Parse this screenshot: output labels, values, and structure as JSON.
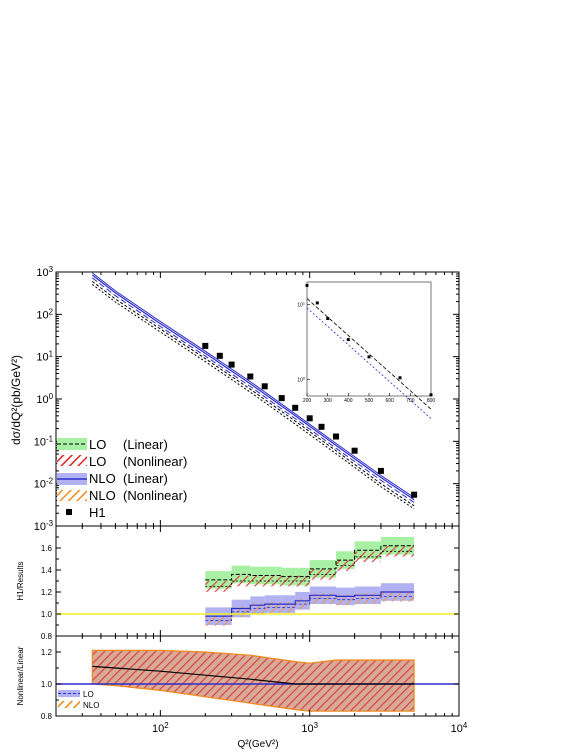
{
  "chart_data": [
    {
      "type": "line",
      "panel": "main",
      "xlabel": "Q²(GeV²)",
      "ylabel": "dσ/dQ²(pb/GeV²)",
      "xscale": "log",
      "yscale": "log",
      "xlim": [
        20,
        10000
      ],
      "ylim": [
        0.001,
        1000
      ],
      "x_ticks": [
        {
          "v": 100,
          "b": "10",
          "e": "2"
        },
        {
          "v": 1000,
          "b": "10",
          "e": "3"
        },
        {
          "v": 10000,
          "b": "10",
          "e": "4"
        }
      ],
      "y_ticks": [
        {
          "v": 0.001,
          "b": "10",
          "e": "-3"
        },
        {
          "v": 0.01,
          "b": "10",
          "e": "-2"
        },
        {
          "v": 0.1,
          "b": "10",
          "e": "-1"
        },
        {
          "v": 1,
          "b": "10",
          "e": "0"
        },
        {
          "v": 10,
          "b": "10",
          "e": "1"
        },
        {
          "v": 100,
          "b": "10",
          "e": "2"
        },
        {
          "v": 1000,
          "b": "10",
          "e": "3"
        }
      ],
      "legend_position": "lower-left",
      "legend": [
        {
          "label": "LO",
          "note": "(Linear)",
          "style": "green-band-dashed"
        },
        {
          "label": "LO",
          "note": "(Nonlinear)",
          "style": "red-hatch"
        },
        {
          "label": "NLO",
          "note": "(Linear)",
          "style": "blue-band-solid"
        },
        {
          "label": "NLO",
          "note": "(Nonlinear)",
          "style": "orange-hatch"
        },
        {
          "label": "H1",
          "note": "",
          "style": "square-marker"
        }
      ],
      "series": [
        {
          "key": "nlo",
          "color": "#2c2ccc",
          "x": [
            35,
            50,
            100,
            200,
            400,
            800,
            1500,
            3000,
            5000
          ],
          "y": [
            850,
            320,
            60,
            12,
            2.3,
            0.4,
            0.08,
            0.014,
            0.0042
          ]
        },
        {
          "key": "lo",
          "color": "#000000",
          "x": [
            35,
            50,
            100,
            200,
            400,
            800,
            1500,
            3000,
            5000
          ],
          "y": [
            600,
            230,
            45,
            9,
            1.7,
            0.3,
            0.06,
            0.01,
            0.003
          ]
        },
        {
          "key": "h1",
          "color": "#000000",
          "x": [
            200,
            250,
            300,
            400,
            500,
            650,
            800,
            1000,
            1200,
            1500,
            2000,
            3000,
            5000
          ],
          "y": [
            18,
            10.5,
            6.5,
            3.4,
            2.0,
            1.05,
            0.62,
            0.35,
            0.22,
            0.13,
            0.06,
            0.02,
            0.0055
          ]
        }
      ]
    },
    {
      "type": "line",
      "panel": "inset",
      "xlim": [
        200,
        800
      ],
      "ylim": [
        0.6,
        20
      ],
      "yscale": "log",
      "x_ticks": [
        200,
        300,
        400,
        500,
        600,
        700,
        800
      ],
      "y_ticks": [
        {
          "v": 10,
          "b": "10",
          "e": "1"
        },
        {
          "v": 1,
          "b": "10",
          "e": "0"
        }
      ],
      "series": [
        {
          "key": "h1",
          "x": [
            200,
            250,
            300,
            400,
            500,
            650,
            800
          ],
          "y": [
            18,
            10.5,
            6.5,
            3.4,
            2.0,
            1.05,
            0.62
          ]
        },
        {
          "key": "lo",
          "x": [
            200,
            800
          ],
          "y": [
            9,
            0.3
          ]
        },
        {
          "key": "nlo",
          "x": [
            200,
            800
          ],
          "y": [
            12,
            0.4
          ]
        }
      ]
    },
    {
      "type": "area",
      "panel": "ratio",
      "ylabel": "H1/Results",
      "ylim": [
        0.8,
        1.8
      ],
      "y_ticks": [
        "0.8",
        "1.0",
        "1.2",
        "1.4",
        "1.6"
      ],
      "reference_line": 1.0,
      "bins": [
        200,
        300,
        400,
        500,
        650,
        800,
        1000,
        1200,
        1500,
        2000,
        3000,
        5000
      ],
      "lo_linear": [
        1.31,
        1.36,
        1.35,
        1.35,
        1.34,
        1.34,
        1.41,
        1.41,
        1.49,
        1.58,
        1.62
      ],
      "lo_nonlinear": [
        1.25,
        1.3,
        1.3,
        1.3,
        1.3,
        1.3,
        1.36,
        1.36,
        1.44,
        1.52,
        1.57
      ],
      "nlo_linear": [
        0.98,
        1.05,
        1.08,
        1.09,
        1.09,
        1.12,
        1.17,
        1.17,
        1.16,
        1.17,
        1.2
      ],
      "nlo_nonlinear": [
        0.94,
        1.02,
        1.05,
        1.06,
        1.06,
        1.09,
        1.14,
        1.14,
        1.13,
        1.14,
        1.16
      ],
      "lo_halfwidth": 0.08,
      "nlo_halfwidth": 0.08
    },
    {
      "type": "area",
      "panel": "nonlinear-linear",
      "ylabel": "Nonlinear/Linear",
      "xlabel": "Q²(GeV²)",
      "ylim": [
        0.8,
        1.3
      ],
      "y_ticks": [
        "0.8",
        "1.0",
        "1.2"
      ],
      "reference_line": 1.0,
      "legend_position": "lower-left",
      "legend": [
        {
          "label": "LO",
          "style": "blue-band-dashed"
        },
        {
          "label": "NLO",
          "style": "orange-hatch"
        }
      ],
      "band_x": [
        35,
        50,
        100,
        200,
        400,
        800,
        1000,
        1500,
        3000,
        5000
      ],
      "band_upper": [
        1.21,
        1.21,
        1.21,
        1.2,
        1.18,
        1.14,
        1.13,
        1.15,
        1.15,
        1.15
      ],
      "band_lower": [
        1.0,
        0.99,
        0.96,
        0.92,
        0.88,
        0.84,
        0.83,
        0.83,
        0.83,
        0.83
      ],
      "central_x": [
        35,
        50,
        100,
        200,
        400,
        800,
        1000,
        1500,
        3000,
        5000
      ],
      "central_y": [
        1.11,
        1.1,
        1.08,
        1.055,
        1.03,
        1.0,
        1.0,
        1.0,
        1.0,
        1.0
      ]
    }
  ]
}
